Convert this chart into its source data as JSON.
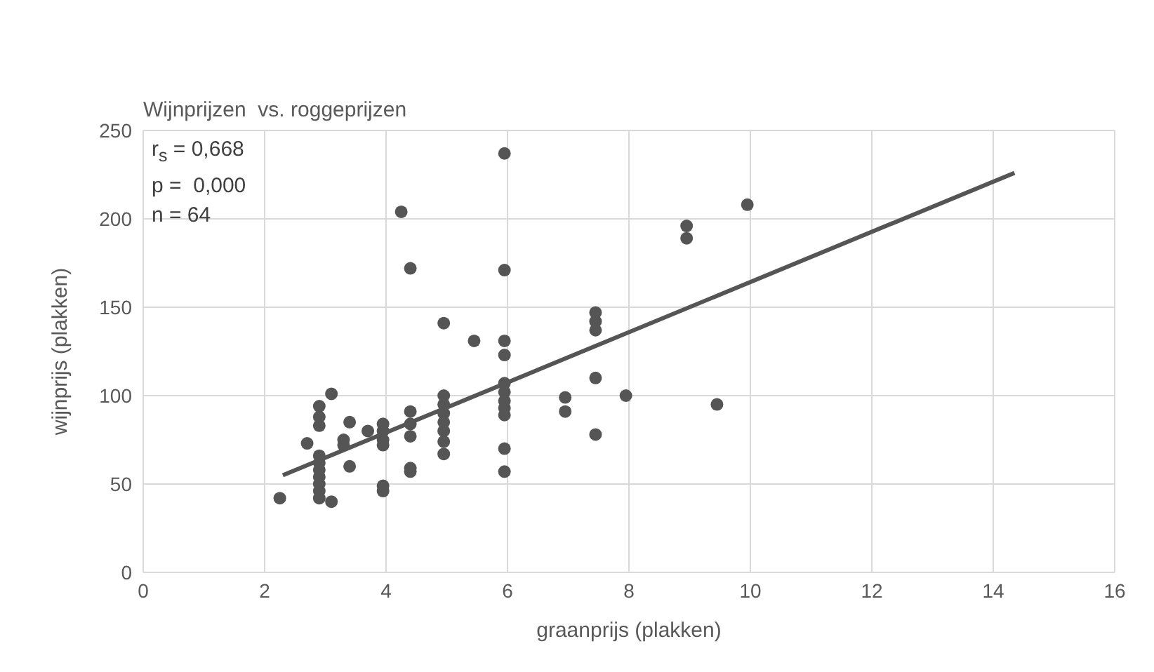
{
  "chart_data": {
    "type": "scatter",
    "title": "Wijnprijzen  vs. roggeprijzen",
    "xlabel": "graanprijs  (plakken)",
    "ylabel": "wijnprijs  (plakken)",
    "annotations": [
      "r$_{s}$ = 0,668",
      "p =  0,000",
      "n = 64"
    ],
    "xlim": [
      0,
      16
    ],
    "xticks": [
      0,
      2,
      4,
      6,
      8,
      10,
      12,
      14,
      16
    ],
    "ylim": [
      0,
      250
    ],
    "yticks": [
      0,
      50,
      100,
      150,
      200,
      250
    ],
    "grid": true,
    "marker": "circle",
    "series": [
      {
        "color": "#555555",
        "x": [
          2.25,
          2.7,
          2.9,
          2.9,
          2.9,
          2.9,
          2.9,
          2.9,
          2.9,
          2.9,
          2.9,
          2.9,
          3.1,
          3.1,
          3.4,
          3.4,
          3.3,
          3.3,
          3.7,
          3.95,
          3.95,
          3.95,
          3.95,
          3.95,
          3.95,
          4.25,
          4.4,
          4.4,
          4.4,
          4.4,
          4.4,
          4.4,
          4.95,
          4.95,
          4.95,
          4.95,
          4.95,
          4.95,
          4.95,
          4.95,
          5.45,
          5.95,
          5.95,
          5.95,
          5.95,
          5.95,
          5.95,
          5.95,
          5.95,
          5.95,
          5.95,
          5.95,
          6.95,
          6.95,
          7.45,
          7.45,
          7.45,
          7.45,
          7.45,
          7.95,
          8.95,
          8.95,
          9.95,
          9.45
        ],
        "values": [
          42,
          73,
          94,
          88,
          83,
          66,
          62,
          58,
          54,
          50,
          46,
          42,
          101,
          40,
          85,
          60,
          75,
          72,
          80,
          84,
          80,
          75,
          72,
          49,
          46,
          204,
          172,
          91,
          84,
          77,
          59,
          57,
          141,
          100,
          95,
          90,
          85,
          80,
          74,
          67,
          131,
          237,
          171,
          131,
          123,
          107,
          102,
          97,
          93,
          89,
          70,
          57,
          99,
          91,
          147,
          142,
          137,
          110,
          78,
          100,
          196,
          189,
          208,
          95
        ]
      },
      {
        "type": "line",
        "marker": "none",
        "color": "#555555",
        "x": [
          2.3,
          14.35
        ],
        "values": [
          55,
          226
        ]
      }
    ]
  }
}
